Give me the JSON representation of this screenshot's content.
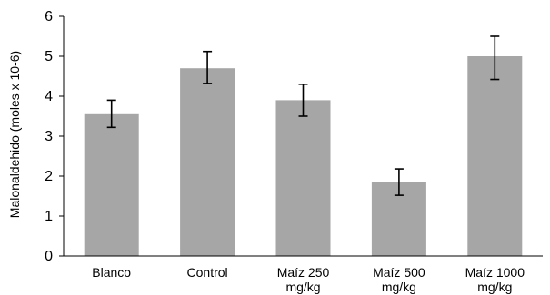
{
  "chart_data": {
    "type": "bar",
    "title": "",
    "xlabel": "",
    "ylabel": "Malonaldehido (moles x 10-6)",
    "ylim": [
      0,
      6
    ],
    "yticks": [
      0,
      1,
      2,
      3,
      4,
      5,
      6
    ],
    "grid": false,
    "categories": [
      [
        "Blanco"
      ],
      [
        "Control"
      ],
      [
        "Maíz 250",
        "mg/kg"
      ],
      [
        "Maíz 500",
        "mg/kg"
      ],
      [
        "Maíz 1000",
        "mg/kg"
      ]
    ],
    "values": [
      3.55,
      4.7,
      3.9,
      1.85,
      5.0
    ],
    "error_low": [
      3.22,
      4.32,
      3.5,
      1.52,
      4.42
    ],
    "error_high": [
      3.9,
      5.12,
      4.3,
      2.18,
      5.5
    ],
    "colors": {
      "bar": "#a6a6a6",
      "axis": "#000000",
      "error_bar": "#000000"
    }
  }
}
